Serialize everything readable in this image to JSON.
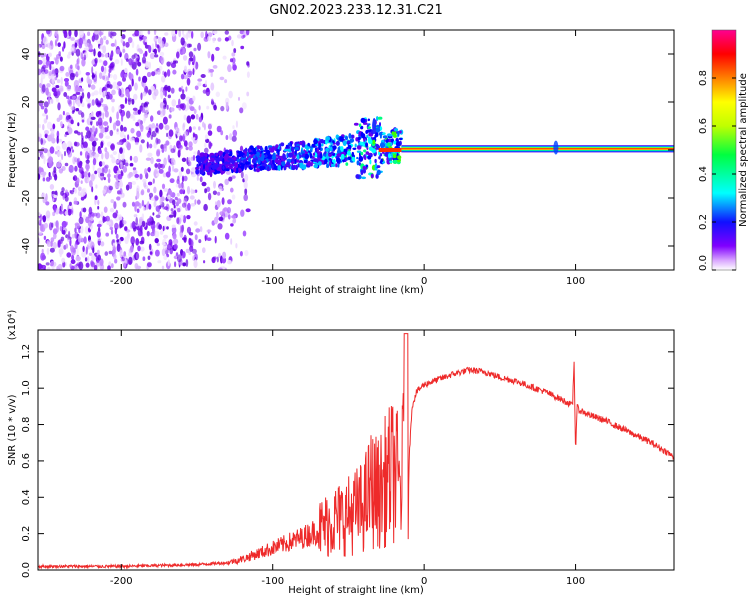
{
  "title": "GN02.2023.233.12.31.C21",
  "chart_data": [
    {
      "type": "heatmap",
      "title": "GN02.2023.233.12.31.C21",
      "xlabel": "Height of straight line (km)",
      "ylabel": "Frequency (Hz)",
      "xlim": [
        -255,
        165
      ],
      "ylim": [
        -50,
        50
      ],
      "xticks": [
        -200,
        -100,
        0,
        100
      ],
      "xtick_labels": [
        "-200",
        "-100",
        "0",
        "100"
      ],
      "yticks": [
        -40,
        -20,
        0,
        20,
        40
      ],
      "ytick_labels": [
        "-40",
        "-20",
        "0",
        "20",
        "40"
      ],
      "colorbar": {
        "label": "Normalized spectral amplitude",
        "range": [
          0,
          1
        ],
        "ticks": [
          0.0,
          0.2,
          0.4,
          0.6,
          0.8
        ],
        "tick_labels": [
          "0.0",
          "0.2",
          "0.4",
          "0.6",
          "0.8"
        ],
        "colors": [
          "#ffffff",
          "#c070ff",
          "#6a00ee",
          "#0000ff",
          "#00ffff",
          "#00ff00",
          "#ffff00",
          "#ff8000",
          "#ff0000",
          "#ff0080"
        ]
      },
      "regions": [
        {
          "name": "noise",
          "x_range": [
            -255,
            -120
          ],
          "freq_range": [
            -50,
            50
          ],
          "amplitude": 0.15
        },
        {
          "name": "onset",
          "x_range": [
            -150,
            -15
          ],
          "center_freq": [
            -5,
            3
          ],
          "amplitude": [
            0.25,
            0.45
          ]
        },
        {
          "name": "tone",
          "x_range": [
            -15,
            165
          ],
          "center_freq": 0.5,
          "amplitude": 0.95
        },
        {
          "name": "transient",
          "x": 87,
          "center_freq": 1,
          "amplitude": 0.3
        }
      ]
    },
    {
      "type": "line",
      "xlabel": "Height of straight line (km)",
      "ylabel": "SNR (10 * v/v)",
      "y_multiplier": "(x10⁴)",
      "xlim": [
        -255,
        165
      ],
      "ylim": [
        0,
        1.32
      ],
      "xticks": [
        -200,
        -100,
        0,
        100
      ],
      "xtick_labels": [
        "-200",
        "-100",
        "0",
        "100"
      ],
      "yticks": [
        0.0,
        0.2,
        0.4,
        0.6,
        0.8,
        1.0,
        1.2
      ],
      "ytick_labels": [
        "0.0",
        "0.2",
        "0.4",
        "0.6",
        "0.8",
        "1.0",
        "1.2"
      ],
      "series": [
        {
          "name": "SNR",
          "color": "#ee2a2a",
          "x": [
            -255,
            -200,
            -150,
            -130,
            -120,
            -110,
            -100,
            -90,
            -80,
            -70,
            -60,
            -50,
            -40,
            -35,
            -30,
            -25,
            -20,
            -15,
            -12,
            -10,
            -8,
            -5,
            0,
            10,
            20,
            30,
            40,
            50,
            60,
            70,
            80,
            90,
            95,
            98,
            99,
            100,
            101,
            102,
            105,
            110,
            120,
            130,
            140,
            150,
            160,
            165
          ],
          "y": [
            0.02,
            0.02,
            0.03,
            0.04,
            0.06,
            0.09,
            0.12,
            0.15,
            0.18,
            0.22,
            0.27,
            0.3,
            0.35,
            0.45,
            0.42,
            0.5,
            0.55,
            0.45,
            0.85,
            0.6,
            0.9,
            0.98,
            1.02,
            1.05,
            1.08,
            1.1,
            1.09,
            1.06,
            1.04,
            1.01,
            0.98,
            0.94,
            0.92,
            0.9,
            1.15,
            0.65,
            0.9,
            0.88,
            0.87,
            0.85,
            0.82,
            0.78,
            0.74,
            0.7,
            0.65,
            0.62
          ]
        }
      ]
    }
  ]
}
